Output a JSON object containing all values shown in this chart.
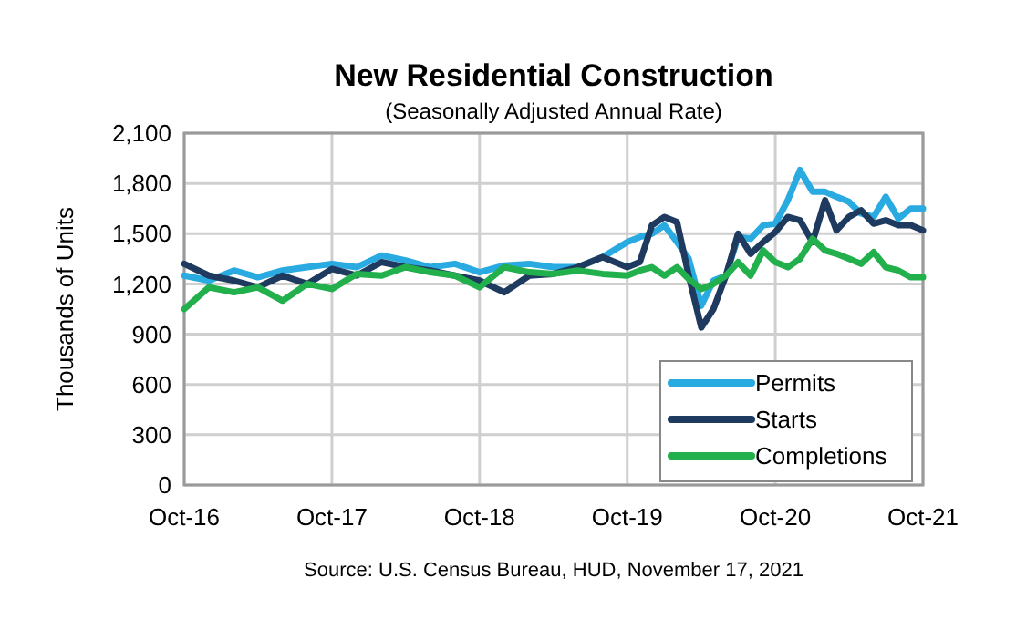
{
  "chart_data": {
    "type": "line",
    "title": "New Residential Construction",
    "subtitle": "(Seasonally Adjusted Annual Rate)",
    "ylabel": "Thousands of Units",
    "annotations": [
      "Source:  U.S. Census Bureau, HUD, November 17, 2021"
    ],
    "x": [
      "2016-10",
      "2016-12",
      "2017-02",
      "2017-04",
      "2017-06",
      "2017-08",
      "2017-10",
      "2017-12",
      "2018-02",
      "2018-04",
      "2018-06",
      "2018-08",
      "2018-10",
      "2018-12",
      "2019-02",
      "2019-04",
      "2019-06",
      "2019-08",
      "2019-10",
      "2019-11",
      "2019-12",
      "2020-01",
      "2020-02",
      "2020-03",
      "2020-04",
      "2020-05",
      "2020-06",
      "2020-07",
      "2020-08",
      "2020-09",
      "2020-10",
      "2020-11",
      "2020-12",
      "2021-01",
      "2021-02",
      "2021-03",
      "2021-04",
      "2021-05",
      "2021-06",
      "2021-07",
      "2021-08",
      "2021-09",
      "2021-10"
    ],
    "series": [
      {
        "name": "Permits",
        "color": "#29aae1",
        "values": [
          1250,
          1220,
          1280,
          1240,
          1280,
          1300,
          1320,
          1300,
          1370,
          1340,
          1300,
          1320,
          1270,
          1310,
          1320,
          1300,
          1300,
          1360,
          1450,
          1480,
          1500,
          1550,
          1450,
          1350,
          1070,
          1220,
          1250,
          1480,
          1470,
          1550,
          1560,
          1700,
          1880,
          1750,
          1750,
          1720,
          1690,
          1620,
          1600,
          1720,
          1590,
          1650,
          1650
        ]
      },
      {
        "name": "Starts",
        "color": "#1f3a5f",
        "values": [
          1320,
          1250,
          1220,
          1180,
          1250,
          1200,
          1290,
          1250,
          1330,
          1300,
          1280,
          1250,
          1220,
          1150,
          1250,
          1260,
          1300,
          1360,
          1300,
          1330,
          1550,
          1600,
          1570,
          1250,
          940,
          1050,
          1250,
          1500,
          1380,
          1450,
          1510,
          1600,
          1580,
          1450,
          1700,
          1520,
          1600,
          1640,
          1560,
          1580,
          1550,
          1550,
          1520
        ]
      },
      {
        "name": "Completions",
        "color": "#21b04b",
        "values": [
          1050,
          1180,
          1150,
          1180,
          1100,
          1200,
          1170,
          1260,
          1250,
          1300,
          1270,
          1250,
          1180,
          1300,
          1270,
          1260,
          1280,
          1260,
          1250,
          1280,
          1300,
          1250,
          1300,
          1230,
          1170,
          1200,
          1250,
          1330,
          1250,
          1400,
          1330,
          1300,
          1350,
          1470,
          1400,
          1380,
          1350,
          1320,
          1390,
          1300,
          1280,
          1240,
          1240
        ]
      }
    ],
    "xlim": [
      "2016-10",
      "2021-10"
    ],
    "xticks": [
      {
        "value": "2016-10",
        "label": "Oct-16"
      },
      {
        "value": "2017-10",
        "label": "Oct-17"
      },
      {
        "value": "2018-10",
        "label": "Oct-18"
      },
      {
        "value": "2019-10",
        "label": "Oct-19"
      },
      {
        "value": "2020-10",
        "label": "Oct-20"
      },
      {
        "value": "2021-10",
        "label": "Oct-21"
      }
    ],
    "ylim": [
      0,
      2100
    ],
    "yticks": [
      0,
      {
        "value": 300,
        "label": "300"
      },
      {
        "value": 600,
        "label": "600"
      },
      {
        "value": 900,
        "label": "900"
      },
      {
        "value": 1200,
        "label": "1,200"
      },
      {
        "value": 1500,
        "label": "1,500"
      },
      {
        "value": 1800,
        "label": "1,800"
      },
      {
        "value": 2100,
        "label": "2,100"
      }
    ],
    "grid": true,
    "legend": "bottom right",
    "line_style": "solid",
    "marker": "none"
  }
}
